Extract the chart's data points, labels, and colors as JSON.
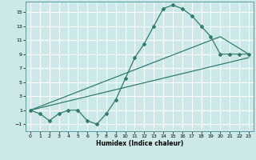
{
  "xlabel": "Humidex (Indice chaleur)",
  "bg_color": "#cce8e8",
  "grid_color": "#ffffff",
  "line_color": "#2e7d6e",
  "xlim": [
    -0.5,
    23.5
  ],
  "ylim": [
    -2.0,
    16.5
  ],
  "xticks": [
    0,
    1,
    2,
    3,
    4,
    5,
    6,
    7,
    8,
    9,
    10,
    11,
    12,
    13,
    14,
    15,
    16,
    17,
    18,
    19,
    20,
    21,
    22,
    23
  ],
  "yticks": [
    -1,
    1,
    3,
    5,
    7,
    9,
    11,
    13,
    15
  ],
  "line1_x": [
    0,
    1,
    2,
    3,
    4,
    5,
    6,
    7,
    8,
    9,
    10,
    11,
    12,
    13,
    14,
    15,
    16,
    17,
    18,
    19,
    20,
    21,
    22,
    23
  ],
  "line1_y": [
    1.0,
    0.5,
    -0.5,
    0.5,
    1.0,
    1.0,
    -0.5,
    -1.0,
    0.5,
    2.5,
    5.5,
    8.5,
    10.5,
    13.0,
    15.5,
    16.0,
    15.5,
    14.5,
    13.0,
    11.5,
    9.0,
    9.0,
    9.0,
    9.0
  ],
  "line2_x": [
    0,
    23
  ],
  "line2_y": [
    1.0,
    8.5
  ],
  "line3_x": [
    0,
    20,
    23
  ],
  "line3_y": [
    1.0,
    11.5,
    9.0
  ]
}
